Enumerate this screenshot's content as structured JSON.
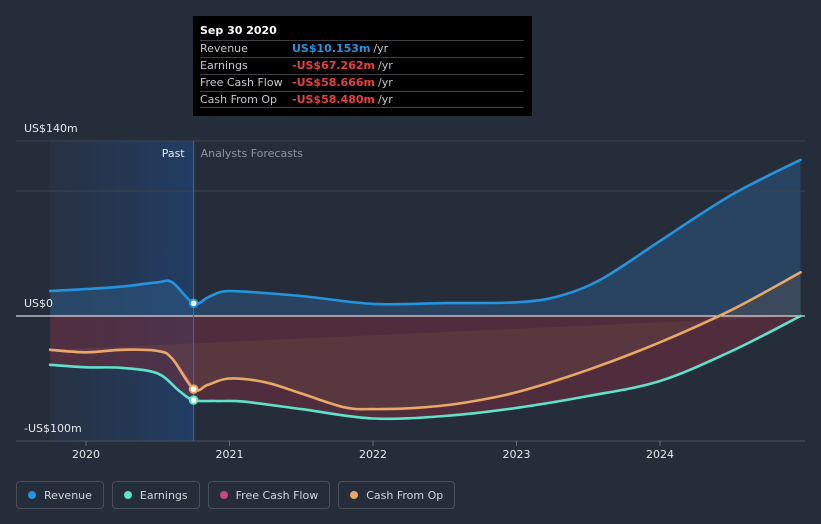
{
  "tooltip": {
    "date": "Sep 30 2020",
    "rows": [
      {
        "label": "Revenue",
        "value": "US$10.153m",
        "unit": "/yr",
        "color": "#2394df"
      },
      {
        "label": "Earnings",
        "value": "-US$67.262m",
        "unit": "/yr",
        "color": "#e64141"
      },
      {
        "label": "Free Cash Flow",
        "value": "-US$58.666m",
        "unit": "/yr",
        "color": "#e64141"
      },
      {
        "label": "Cash From Op",
        "value": "-US$58.480m",
        "unit": "/yr",
        "color": "#e64141"
      }
    ]
  },
  "legend": [
    {
      "label": "Revenue",
      "color": "#2394df"
    },
    {
      "label": "Earnings",
      "color": "#5ee2c9"
    },
    {
      "label": "Free Cash Flow",
      "color": "#c4487d"
    },
    {
      "label": "Cash From Op",
      "color": "#e8a866"
    }
  ],
  "chart_data": {
    "type": "line",
    "x_unit": "year",
    "xlim": [
      2019.4,
      2024.98
    ],
    "ylim": [
      -100,
      140
    ],
    "y_tick_labels": [
      {
        "value": 140,
        "label": "US$140m"
      },
      {
        "value": 0,
        "label": "US$0"
      },
      {
        "value": -100,
        "label": "-US$100m"
      }
    ],
    "x_ticks": [
      2020,
      2021,
      2022,
      2023,
      2024
    ],
    "x_tick_labels": [
      "2020",
      "2021",
      "2022",
      "2023",
      "2024"
    ],
    "past_label": "Past",
    "forecast_label": "Analysts Forecasts",
    "past_start": 2019.75,
    "divider_x": 2020.75,
    "grid": true,
    "series": [
      {
        "name": "Revenue",
        "color": "#2394df",
        "points": [
          [
            2019.75,
            20
          ],
          [
            2020.0,
            21.5
          ],
          [
            2020.25,
            23.5
          ],
          [
            2020.5,
            27
          ],
          [
            2020.6,
            27
          ],
          [
            2020.75,
            10.2
          ],
          [
            2020.85,
            15
          ],
          [
            2020.95,
            19.5
          ],
          [
            2021.1,
            19.5
          ],
          [
            2021.5,
            16
          ],
          [
            2022.0,
            9.7
          ],
          [
            2022.5,
            10.3
          ],
          [
            2023.0,
            11
          ],
          [
            2023.3,
            16
          ],
          [
            2023.6,
            30
          ],
          [
            2024.0,
            60
          ],
          [
            2024.5,
            97
          ],
          [
            2024.98,
            125
          ]
        ]
      },
      {
        "name": "Earnings",
        "color": "#5ee2c9",
        "points": [
          [
            2019.75,
            -39
          ],
          [
            2020.0,
            -41
          ],
          [
            2020.25,
            -41.5
          ],
          [
            2020.5,
            -46
          ],
          [
            2020.65,
            -60
          ],
          [
            2020.75,
            -67.3
          ],
          [
            2020.9,
            -68
          ],
          [
            2021.1,
            -68.5
          ],
          [
            2021.5,
            -74.5
          ],
          [
            2022.0,
            -82
          ],
          [
            2022.5,
            -80
          ],
          [
            2023.0,
            -73.5
          ],
          [
            2023.5,
            -64
          ],
          [
            2024.0,
            -52
          ],
          [
            2024.5,
            -28
          ],
          [
            2024.98,
            0
          ]
        ]
      },
      {
        "name": "Free Cash Flow",
        "color": "#c4487d",
        "points": [
          [
            2019.75,
            -27
          ],
          [
            2020.0,
            -29
          ],
          [
            2020.25,
            -27
          ],
          [
            2020.5,
            -28
          ],
          [
            2020.6,
            -34
          ],
          [
            2020.75,
            -58.7
          ]
        ]
      },
      {
        "name": "Cash From Op",
        "color": "#e8a866",
        "points": [
          [
            2019.75,
            -27
          ],
          [
            2020.0,
            -29
          ],
          [
            2020.25,
            -27
          ],
          [
            2020.5,
            -28
          ],
          [
            2020.6,
            -34
          ],
          [
            2020.75,
            -58.5
          ],
          [
            2020.85,
            -55
          ],
          [
            2021.0,
            -50
          ],
          [
            2021.25,
            -53
          ],
          [
            2021.5,
            -62
          ],
          [
            2021.8,
            -73
          ],
          [
            2022.0,
            -74.5
          ],
          [
            2022.3,
            -73.5
          ],
          [
            2022.6,
            -70
          ],
          [
            2023.0,
            -61
          ],
          [
            2023.5,
            -43
          ],
          [
            2024.0,
            -21
          ],
          [
            2024.5,
            5
          ],
          [
            2024.98,
            35
          ]
        ]
      }
    ]
  }
}
